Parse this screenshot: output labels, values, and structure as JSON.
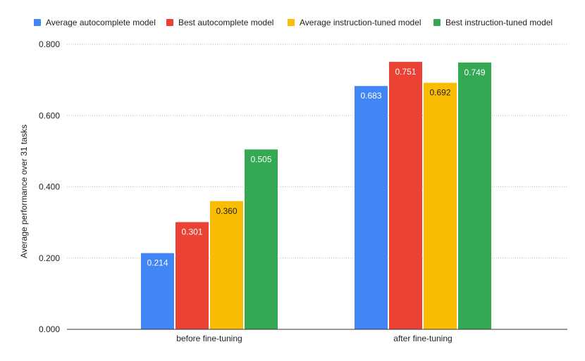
{
  "chart_data": {
    "type": "bar",
    "categories": [
      "before fine-tuning",
      "after fine-tuning"
    ],
    "series": [
      {
        "name": "Average autocomplete model",
        "values": [
          0.214,
          0.683
        ],
        "labels": [
          "0.214",
          "0.683"
        ],
        "color": "#4285F4",
        "label_color": "#ffffff"
      },
      {
        "name": "Best autocomplete model",
        "values": [
          0.301,
          0.751
        ],
        "labels": [
          "0.301",
          "0.751"
        ],
        "color": "#EA4335",
        "label_color": "#ffffff"
      },
      {
        "name": "Average instruction-tuned model",
        "values": [
          0.36,
          0.692
        ],
        "labels": [
          "0.360",
          "0.692"
        ],
        "color": "#FBBC04",
        "label_color": "#222222"
      },
      {
        "name": "Best instruction-tuned model",
        "values": [
          0.505,
          0.749
        ],
        "labels": [
          "0.505",
          "0.749"
        ],
        "color": "#34A853",
        "label_color": "#ffffff"
      }
    ],
    "ylabel": "Average performance over 31 tasks",
    "xlabel": "",
    "ylim": [
      0,
      0.8
    ],
    "yticks": [
      "0.000",
      "0.200",
      "0.400",
      "0.600",
      "0.800"
    ],
    "ytick_values": [
      0,
      0.2,
      0.4,
      0.6,
      0.8
    ],
    "grid": true,
    "legend_position": "top"
  }
}
